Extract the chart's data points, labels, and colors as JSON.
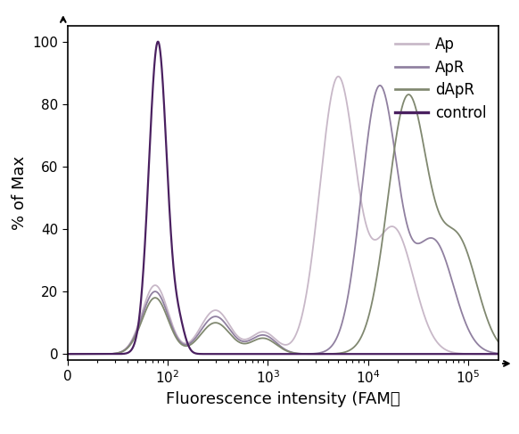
{
  "title": "",
  "xlabel": "Fluorescence intensity (FAM）",
  "ylabel": "% of Max",
  "ylim": [
    -2,
    105
  ],
  "yticks": [
    0,
    20,
    40,
    60,
    80,
    100
  ],
  "legend_labels": [
    "Ap",
    "ApR",
    "dApR",
    "control"
  ],
  "colors": {
    "Ap": "#c8b8c8",
    "ApR": "#9080a0",
    "dApR": "#808870",
    "control": "#4a2060"
  },
  "linewidths": {
    "Ap": 1.3,
    "ApR": 1.3,
    "dApR": 1.3,
    "control": 1.6
  },
  "background_color": "#ffffff"
}
